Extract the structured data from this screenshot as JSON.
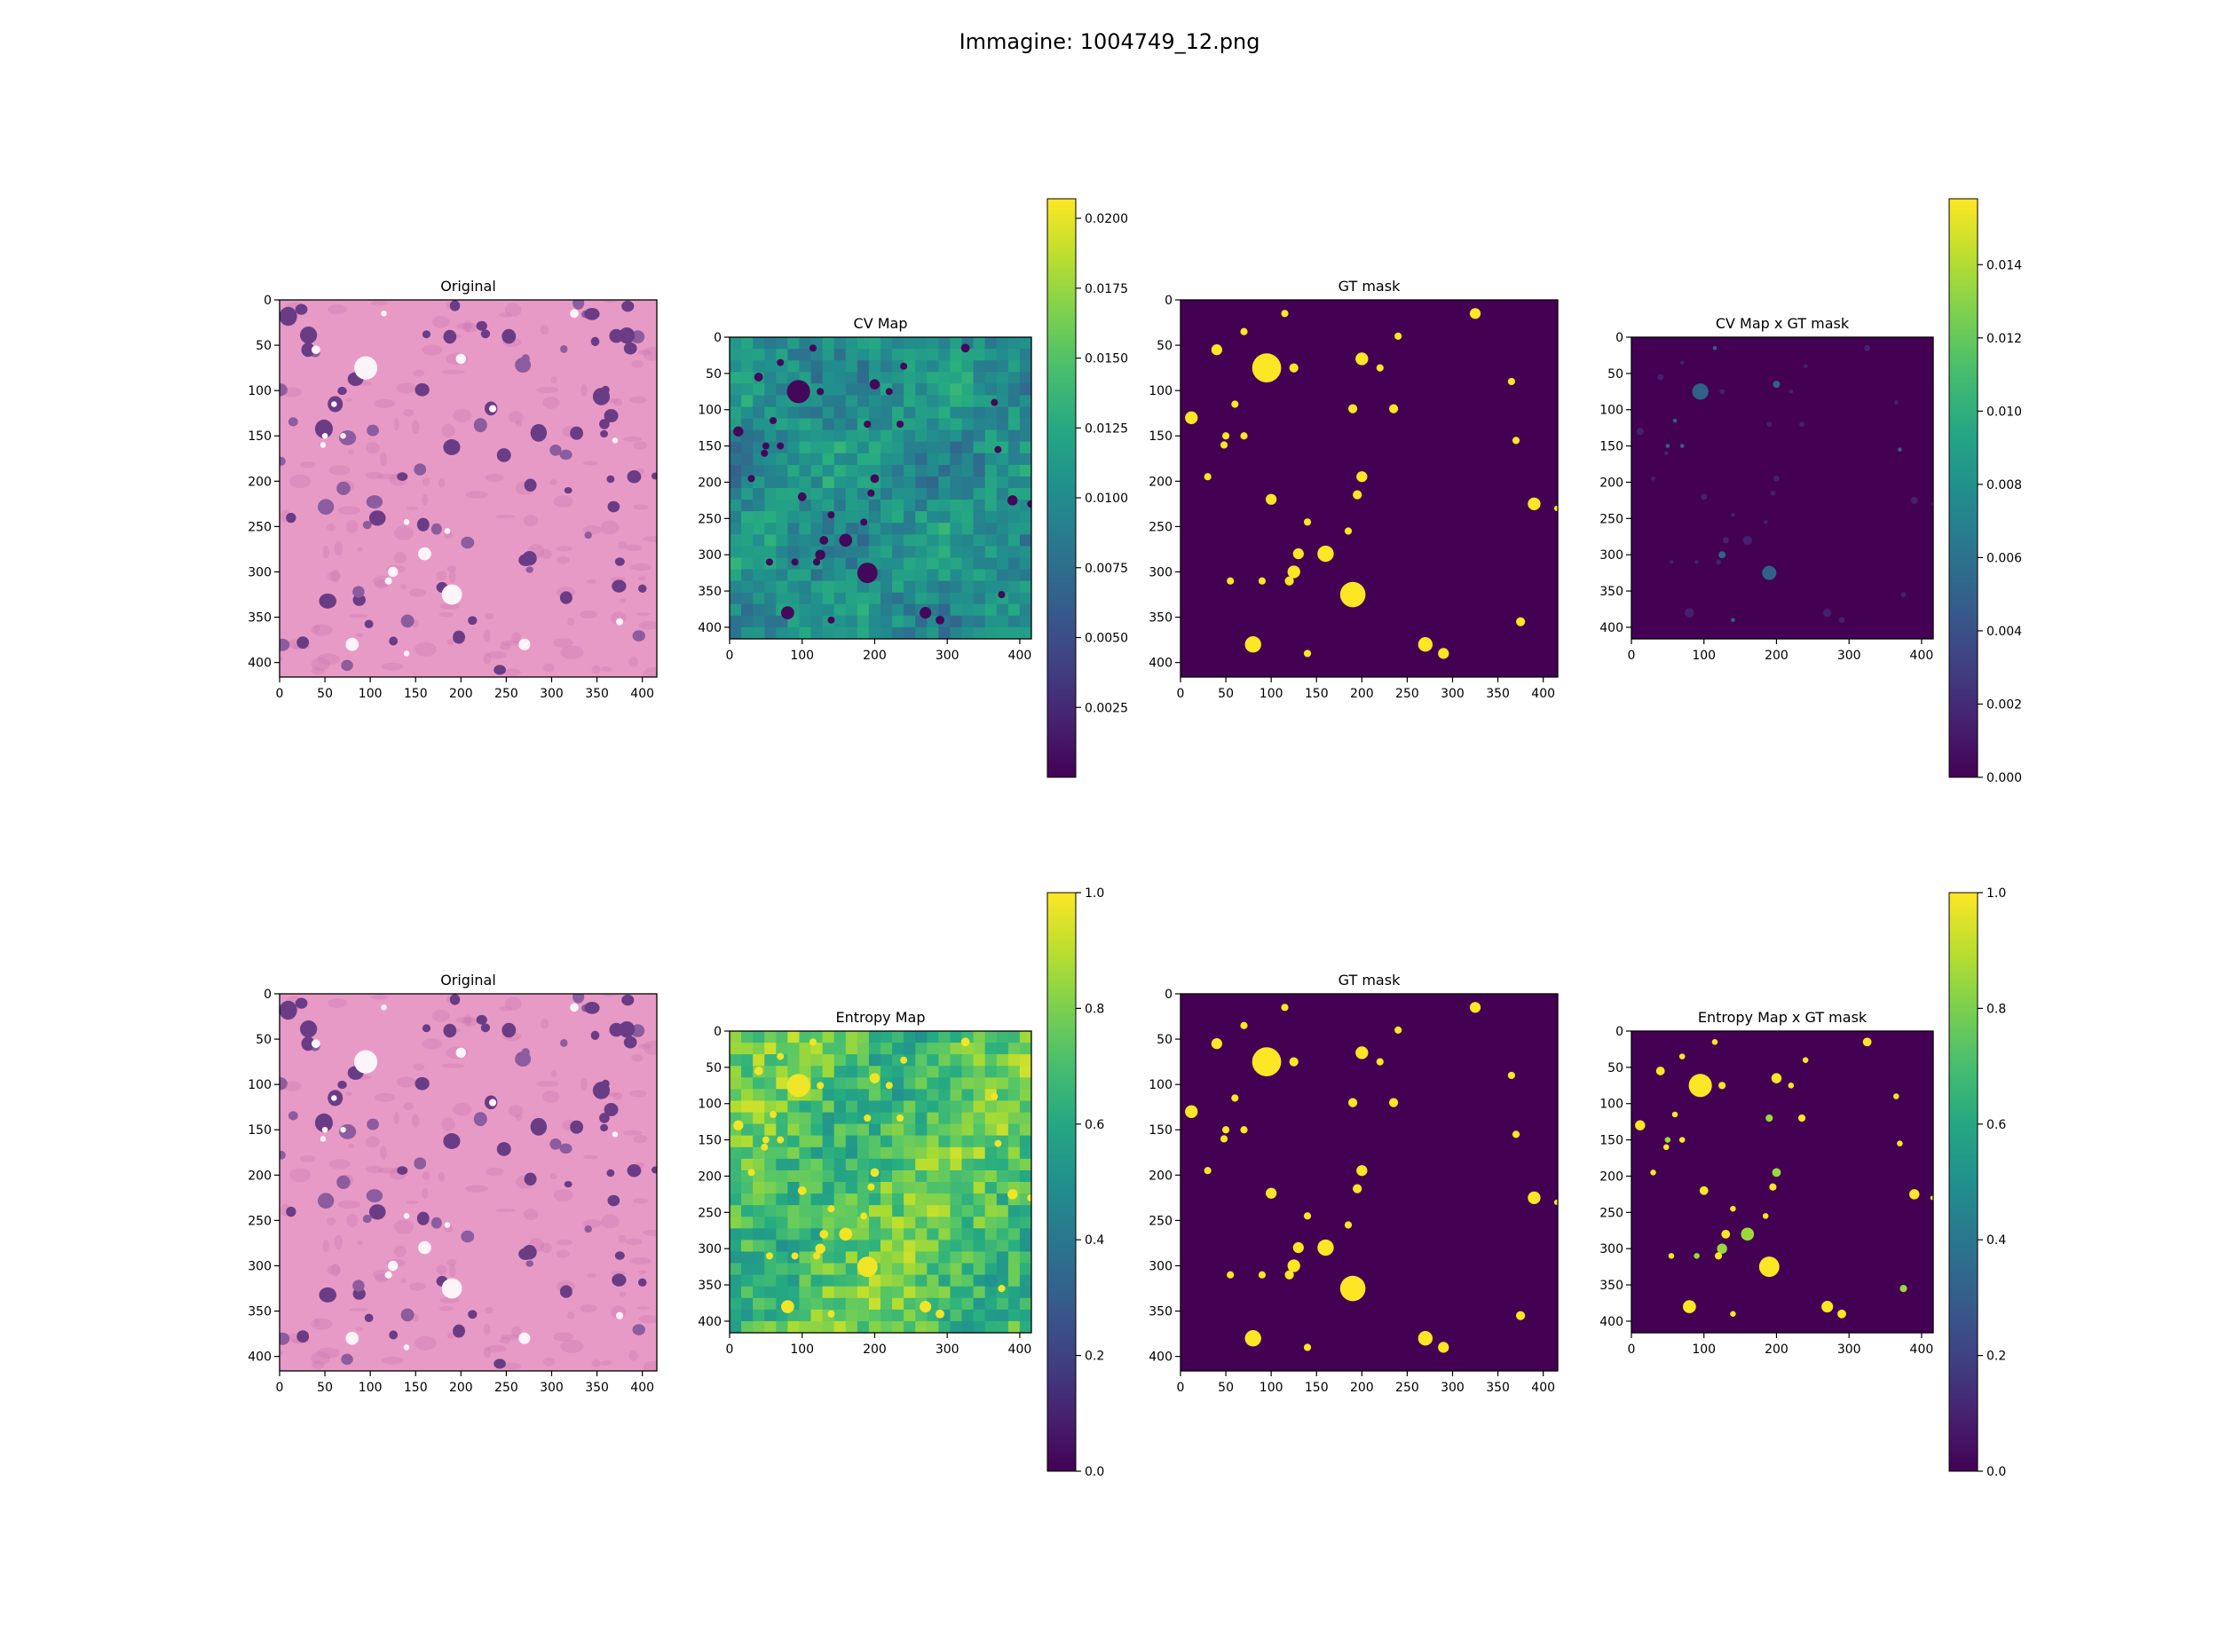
{
  "suptitle": "Immagine: 1004749_12.png",
  "colors": {
    "he_background": "#e89ac6",
    "he_nucleus": "#6a3c86",
    "he_nucleus_light": "#8c5c9e",
    "he_vacuole": "#fbf4f8",
    "he_eosin_dark": "#c979b0"
  },
  "chart_data": [
    {
      "type": "heatmap",
      "title": "Original",
      "xlim": [
        0,
        416
      ],
      "ylim": [
        416,
        0
      ],
      "xticks": [
        0,
        50,
        100,
        150,
        200,
        250,
        300,
        350,
        400
      ],
      "yticks": [
        0,
        50,
        100,
        150,
        200,
        250,
        300,
        350,
        400
      ],
      "image": "H&E histology tile"
    },
    {
      "type": "heatmap",
      "title": "CV Map",
      "colormap": "viridis",
      "xlim": [
        0,
        416
      ],
      "ylim": [
        416,
        0
      ],
      "xticks": [
        0,
        100,
        200,
        300,
        400
      ],
      "yticks": [
        0,
        50,
        100,
        150,
        200,
        250,
        300,
        350,
        400
      ],
      "colorbar": {
        "min": 0.0,
        "max": 0.0207,
        "ticks": [
          0.0025,
          0.005,
          0.0075,
          0.01,
          0.0125,
          0.015,
          0.0175,
          0.02
        ],
        "tick_labels": [
          "0.0025",
          "0.0050",
          "0.0075",
          "0.0100",
          "0.0125",
          "0.0150",
          "0.0175",
          "0.0200"
        ]
      }
    },
    {
      "type": "heatmap",
      "title": "GT mask",
      "colormap": "viridis",
      "xlim": [
        0,
        416
      ],
      "ylim": [
        416,
        0
      ],
      "xticks": [
        0,
        50,
        100,
        150,
        200,
        250,
        300,
        350,
        400
      ],
      "yticks": [
        0,
        50,
        100,
        150,
        200,
        250,
        300,
        350,
        400
      ]
    },
    {
      "type": "heatmap",
      "title": "CV Map x GT mask",
      "colormap": "viridis",
      "xlim": [
        0,
        416
      ],
      "ylim": [
        416,
        0
      ],
      "xticks": [
        0,
        100,
        200,
        300,
        400
      ],
      "yticks": [
        0,
        50,
        100,
        150,
        200,
        250,
        300,
        350,
        400
      ],
      "colorbar": {
        "min": 0.0,
        "max": 0.0158,
        "ticks": [
          0.0,
          0.002,
          0.004,
          0.006,
          0.008,
          0.01,
          0.012,
          0.014
        ],
        "tick_labels": [
          "0.000",
          "0.002",
          "0.004",
          "0.006",
          "0.008",
          "0.010",
          "0.012",
          "0.014"
        ]
      }
    },
    {
      "type": "heatmap",
      "title": "Original",
      "xlim": [
        0,
        416
      ],
      "ylim": [
        416,
        0
      ],
      "xticks": [
        0,
        50,
        100,
        150,
        200,
        250,
        300,
        350,
        400
      ],
      "yticks": [
        0,
        50,
        100,
        150,
        200,
        250,
        300,
        350,
        400
      ],
      "image": "H&E histology tile"
    },
    {
      "type": "heatmap",
      "title": "Entropy Map",
      "colormap": "viridis",
      "xlim": [
        0,
        416
      ],
      "ylim": [
        416,
        0
      ],
      "xticks": [
        0,
        100,
        200,
        300,
        400
      ],
      "yticks": [
        0,
        50,
        100,
        150,
        200,
        250,
        300,
        350,
        400
      ],
      "colorbar": {
        "min": 0.0,
        "max": 1.0,
        "ticks": [
          0.0,
          0.2,
          0.4,
          0.6,
          0.8,
          1.0
        ],
        "tick_labels": [
          "0.0",
          "0.2",
          "0.4",
          "0.6",
          "0.8",
          "1.0"
        ]
      }
    },
    {
      "type": "heatmap",
      "title": "GT mask",
      "colormap": "viridis",
      "xlim": [
        0,
        416
      ],
      "ylim": [
        416,
        0
      ],
      "xticks": [
        0,
        50,
        100,
        150,
        200,
        250,
        300,
        350,
        400
      ],
      "yticks": [
        0,
        50,
        100,
        150,
        200,
        250,
        300,
        350,
        400
      ]
    },
    {
      "type": "heatmap",
      "title": "Entropy Map x GT mask",
      "colormap": "viridis",
      "xlim": [
        0,
        416
      ],
      "ylim": [
        416,
        0
      ],
      "xticks": [
        0,
        100,
        200,
        300,
        400
      ],
      "yticks": [
        0,
        50,
        100,
        150,
        200,
        250,
        300,
        350,
        400
      ],
      "colorbar": {
        "min": 0.0,
        "max": 1.0,
        "ticks": [
          0.0,
          0.2,
          0.4,
          0.6,
          0.8,
          1.0
        ],
        "tick_labels": [
          "0.0",
          "0.2",
          "0.4",
          "0.6",
          "0.8",
          "1.0"
        ]
      }
    }
  ]
}
